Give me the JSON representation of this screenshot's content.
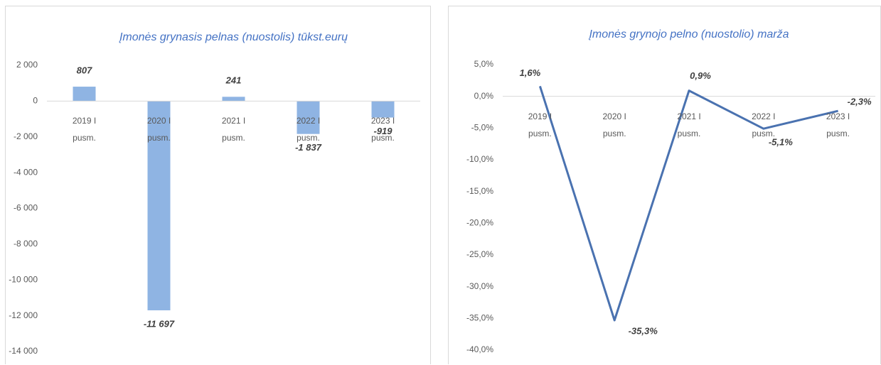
{
  "chart_data": [
    {
      "type": "bar",
      "title": "Įmonės grynasis pelnas (nuostolis) tūkst.eurų",
      "categories": [
        "2019 I pusm.",
        "2020 I pusm.",
        "2021 I pusm.",
        "2022 I pusm.",
        "2023 I pusm."
      ],
      "values": [
        807,
        -11697,
        241,
        -1837,
        -919
      ],
      "value_labels": [
        "807",
        "-11 697",
        "241",
        "-1 837",
        "-919"
      ],
      "color": "#8fb4e3",
      "ylim": [
        -14000,
        2000
      ],
      "yticks": [
        {
          "value": 2000,
          "label": "2 000"
        },
        0,
        {
          "value": -2000,
          "label": "-2 000"
        },
        {
          "value": -4000,
          "label": "-4 000"
        },
        {
          "value": -6000,
          "label": "-6 000"
        },
        {
          "value": -8000,
          "label": "-8 000"
        },
        {
          "value": -10000,
          "label": "-10 000"
        },
        {
          "value": -12000,
          "label": "-12 000"
        },
        {
          "value": -14000,
          "label": "-14 000"
        }
      ]
    },
    {
      "type": "line",
      "title": "Įmonės grynojo pelno (nuostolio) marža",
      "categories": [
        "2019 I pusm.",
        "2020 I pusm.",
        "2021 I pusm.",
        "2022 I pusm.",
        "2023 I pusm."
      ],
      "values": [
        1.6,
        -35.3,
        0.9,
        -5.1,
        -2.3
      ],
      "value_labels": [
        "1,6%",
        "-35,3%",
        "0,9%",
        "-5,1%",
        "-2,3%"
      ],
      "color": "#4a72b0",
      "ylim": [
        -40,
        5
      ],
      "yticks": [
        {
          "value": 5,
          "label": "5,0%"
        },
        {
          "value": 0,
          "label": "0,0%"
        },
        {
          "value": -5,
          "label": "-5,0%"
        },
        {
          "value": -10,
          "label": "-10,0%"
        },
        {
          "value": -15,
          "label": "-15,0%"
        },
        {
          "value": -20,
          "label": "-20,0%"
        },
        {
          "value": -25,
          "label": "-25,0%"
        },
        {
          "value": -30,
          "label": "-30,0%"
        },
        {
          "value": -35,
          "label": "-35,0%"
        },
        {
          "value": -40,
          "label": "-40,0%"
        }
      ]
    }
  ]
}
